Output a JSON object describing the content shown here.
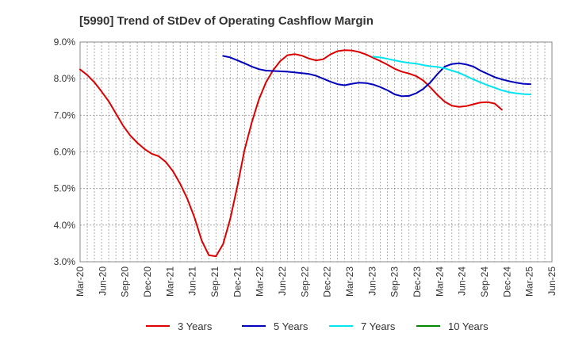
{
  "chart_data": {
    "type": "line",
    "title": "[5990]  Trend of StDev of Operating Cashflow Margin",
    "xlabel": "",
    "ylabel": "",
    "x_tick_labels": [
      "Mar-20",
      "Jun-20",
      "Sep-20",
      "Dec-20",
      "Mar-21",
      "Jun-21",
      "Sep-21",
      "Dec-21",
      "Mar-22",
      "Jun-22",
      "Sep-22",
      "Dec-22",
      "Mar-23",
      "Jun-23",
      "Sep-23",
      "Dec-23",
      "Mar-24",
      "Jun-24",
      "Sep-24",
      "Dec-24",
      "Mar-25",
      "Jun-25"
    ],
    "y_tick_labels": [
      "3.0%",
      "4.0%",
      "5.0%",
      "6.0%",
      "7.0%",
      "8.0%",
      "9.0%"
    ],
    "ylim": [
      3.0,
      9.0
    ],
    "grid": true,
    "legend_position": "bottom",
    "colors": {
      "3 Years": "#dd0000",
      "5 Years": "#0000bb",
      "7 Years": "#00e5ee",
      "10 Years": "#008800"
    },
    "series": [
      {
        "name": "3 Years",
        "values": [
          [
            0,
            8.25
          ],
          [
            1,
            8.1
          ],
          [
            2,
            7.9
          ],
          [
            3,
            7.65
          ],
          [
            4,
            7.38
          ],
          [
            5,
            7.05
          ],
          [
            6,
            6.72
          ],
          [
            7,
            6.45
          ],
          [
            8,
            6.25
          ],
          [
            9,
            6.08
          ],
          [
            10,
            5.95
          ],
          [
            11,
            5.88
          ],
          [
            12,
            5.72
          ],
          [
            13,
            5.47
          ],
          [
            14,
            5.13
          ],
          [
            15,
            4.72
          ],
          [
            16,
            4.21
          ],
          [
            17,
            3.58
          ],
          [
            18,
            3.18
          ],
          [
            19,
            3.15
          ],
          [
            20,
            3.48
          ],
          [
            21,
            4.17
          ],
          [
            22,
            5.06
          ],
          [
            23,
            6.05
          ],
          [
            24,
            6.8
          ],
          [
            25,
            7.43
          ],
          [
            26,
            7.9
          ],
          [
            27,
            8.23
          ],
          [
            28,
            8.48
          ],
          [
            29,
            8.64
          ],
          [
            30,
            8.67
          ],
          [
            31,
            8.63
          ],
          [
            32,
            8.55
          ],
          [
            33,
            8.5
          ],
          [
            34,
            8.53
          ],
          [
            35,
            8.66
          ],
          [
            36,
            8.75
          ],
          [
            37,
            8.78
          ],
          [
            38,
            8.77
          ],
          [
            39,
            8.73
          ],
          [
            40,
            8.66
          ],
          [
            41,
            8.57
          ],
          [
            42,
            8.48
          ],
          [
            43,
            8.38
          ],
          [
            44,
            8.27
          ],
          [
            45,
            8.19
          ],
          [
            46,
            8.14
          ],
          [
            47,
            8.07
          ],
          [
            48,
            7.95
          ],
          [
            49,
            7.76
          ],
          [
            50,
            7.55
          ],
          [
            51,
            7.37
          ],
          [
            52,
            7.26
          ],
          [
            53,
            7.23
          ],
          [
            54,
            7.25
          ],
          [
            55,
            7.3
          ],
          [
            56,
            7.35
          ],
          [
            57,
            7.36
          ],
          [
            58,
            7.32
          ],
          [
            59,
            7.15
          ]
        ]
      },
      {
        "name": "5 Years",
        "values": [
          [
            20,
            8.62
          ],
          [
            21,
            8.58
          ],
          [
            22,
            8.5
          ],
          [
            23,
            8.42
          ],
          [
            24,
            8.33
          ],
          [
            25,
            8.26
          ],
          [
            26,
            8.22
          ],
          [
            27,
            8.21
          ],
          [
            28,
            8.2
          ],
          [
            29,
            8.19
          ],
          [
            30,
            8.17
          ],
          [
            31,
            8.15
          ],
          [
            32,
            8.13
          ],
          [
            33,
            8.08
          ],
          [
            34,
            8.0
          ],
          [
            35,
            7.92
          ],
          [
            36,
            7.85
          ],
          [
            37,
            7.82
          ],
          [
            38,
            7.86
          ],
          [
            39,
            7.89
          ],
          [
            40,
            7.88
          ],
          [
            41,
            7.84
          ],
          [
            42,
            7.77
          ],
          [
            43,
            7.68
          ],
          [
            44,
            7.57
          ],
          [
            45,
            7.52
          ],
          [
            46,
            7.53
          ],
          [
            47,
            7.6
          ],
          [
            48,
            7.72
          ],
          [
            49,
            7.9
          ],
          [
            50,
            8.13
          ],
          [
            51,
            8.33
          ],
          [
            52,
            8.4
          ],
          [
            53,
            8.42
          ],
          [
            54,
            8.39
          ],
          [
            55,
            8.33
          ],
          [
            56,
            8.22
          ],
          [
            57,
            8.13
          ],
          [
            58,
            8.04
          ],
          [
            59,
            7.98
          ],
          [
            60,
            7.93
          ],
          [
            61,
            7.89
          ],
          [
            62,
            7.86
          ],
          [
            63,
            7.85
          ]
        ]
      },
      {
        "name": "7 Years",
        "values": [
          [
            41,
            8.6
          ],
          [
            42,
            8.58
          ],
          [
            43,
            8.54
          ],
          [
            44,
            8.5
          ],
          [
            45,
            8.46
          ],
          [
            46,
            8.43
          ],
          [
            47,
            8.41
          ],
          [
            48,
            8.37
          ],
          [
            49,
            8.34
          ],
          [
            50,
            8.32
          ],
          [
            51,
            8.28
          ],
          [
            52,
            8.22
          ],
          [
            53,
            8.16
          ],
          [
            54,
            8.07
          ],
          [
            55,
            7.98
          ],
          [
            56,
            7.9
          ],
          [
            57,
            7.82
          ],
          [
            58,
            7.75
          ],
          [
            59,
            7.68
          ],
          [
            60,
            7.63
          ],
          [
            61,
            7.6
          ],
          [
            62,
            7.58
          ],
          [
            63,
            7.57
          ]
        ]
      },
      {
        "name": "10 Years",
        "values": []
      }
    ]
  }
}
